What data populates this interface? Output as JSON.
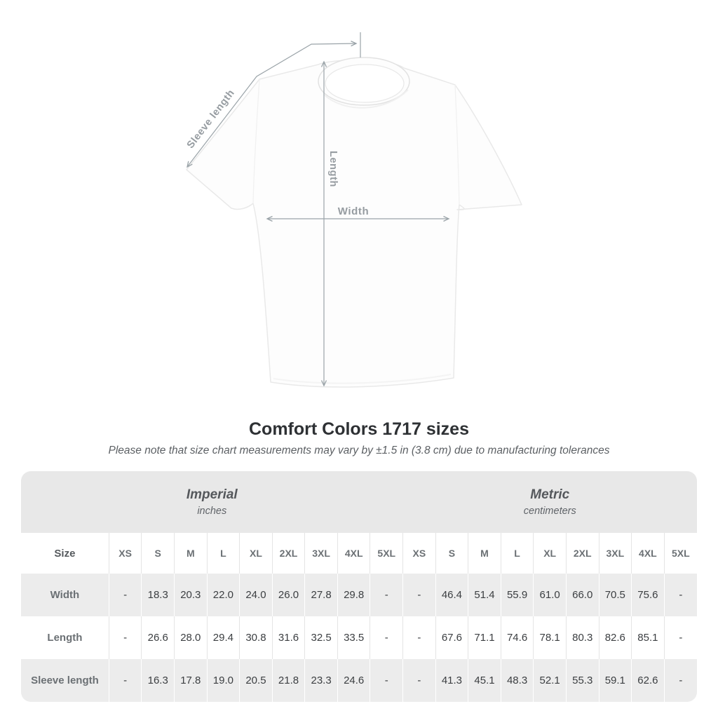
{
  "diagram": {
    "annotation_color": "#9aa3a8",
    "labels": {
      "sleeve_length": "Sleeve length",
      "length": "Length",
      "width": "Width"
    }
  },
  "title": "Comfort Colors 1717 sizes",
  "subtitle": "Please note that size chart measurements may vary by ±1.5 in (3.8 cm) due to manufacturing tolerances",
  "size_table": {
    "unit_groups": [
      {
        "label": "Imperial",
        "sublabel": "inches"
      },
      {
        "label": "Metric",
        "sublabel": "centimeters"
      }
    ],
    "size_header": "Size",
    "sizes": [
      "XS",
      "S",
      "M",
      "L",
      "XL",
      "2XL",
      "3XL",
      "4XL",
      "5XL"
    ],
    "rows": [
      {
        "label": "Width",
        "imperial": [
          "-",
          "18.3",
          "20.3",
          "22.0",
          "24.0",
          "26.0",
          "27.8",
          "29.8",
          "-"
        ],
        "metric": [
          "-",
          "46.4",
          "51.4",
          "55.9",
          "61.0",
          "66.0",
          "70.5",
          "75.6",
          "-"
        ]
      },
      {
        "label": "Length",
        "imperial": [
          "-",
          "26.6",
          "28.0",
          "29.4",
          "30.8",
          "31.6",
          "32.5",
          "33.5",
          "-"
        ],
        "metric": [
          "-",
          "67.6",
          "71.1",
          "74.6",
          "78.1",
          "80.3",
          "82.6",
          "85.1",
          "-"
        ]
      },
      {
        "label": "Sleeve length",
        "imperial": [
          "-",
          "16.3",
          "17.8",
          "19.0",
          "20.5",
          "21.8",
          "23.3",
          "24.6",
          "-"
        ],
        "metric": [
          "-",
          "41.3",
          "45.1",
          "48.3",
          "52.1",
          "55.3",
          "59.1",
          "62.6",
          "-"
        ]
      }
    ]
  },
  "colors": {
    "group_header_bg": "#e8e8e8",
    "stripe_row_bg": "#ececec",
    "separator_on_white": "#e4e4e4",
    "annotation": "#9aa3a8",
    "title_text": "#2e3134"
  }
}
